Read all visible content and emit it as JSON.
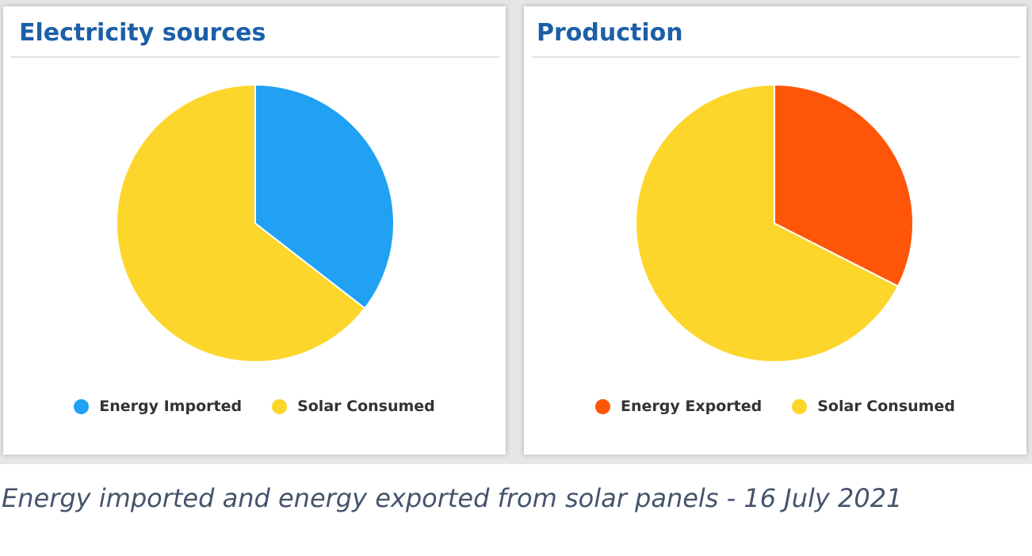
{
  "chart_data": [
    {
      "type": "pie",
      "title": "Electricity sources",
      "legend_placement": "bottom",
      "slices": [
        {
          "label": "Energy Imported",
          "value": 35.5,
          "color": "#20a1f3"
        },
        {
          "label": "Solar Consumed",
          "value": 64.5,
          "color": "#fdd62b"
        }
      ]
    },
    {
      "type": "pie",
      "title": "Production",
      "legend_placement": "bottom",
      "slices": [
        {
          "label": "Energy Exported",
          "value": 32.5,
          "color": "#ff5508"
        },
        {
          "label": "Solar Consumed",
          "value": 67.5,
          "color": "#fdd62b"
        }
      ]
    }
  ],
  "caption": "Energy imported and energy exported from solar panels - 16 July 2021"
}
